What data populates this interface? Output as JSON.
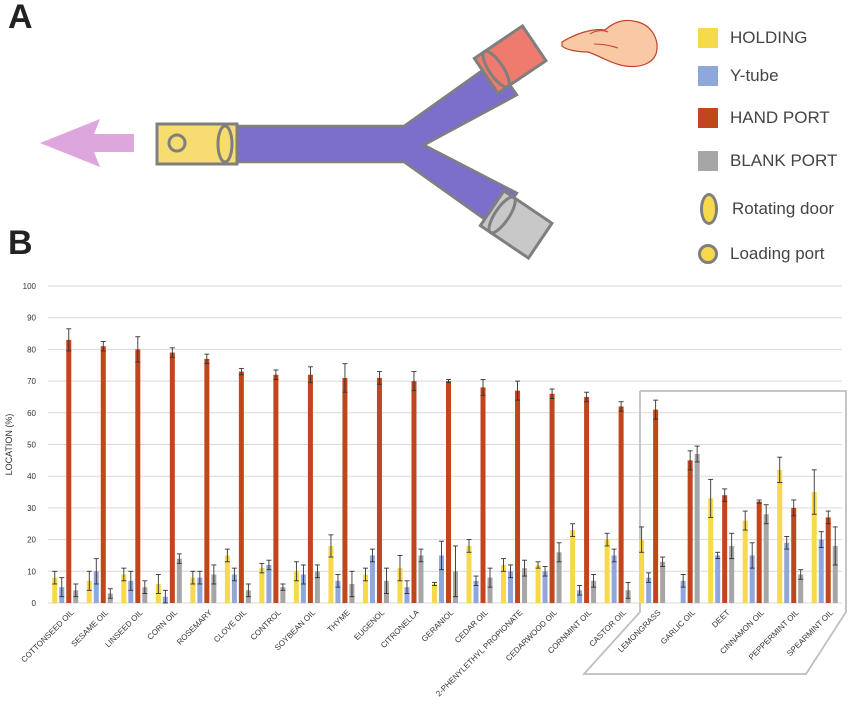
{
  "panels": {
    "a": "A",
    "b": "B"
  },
  "legend": [
    {
      "label": "HOLDING",
      "color": "#F7D94C",
      "shape": "square"
    },
    {
      "label": "Y-tube",
      "color": "#8FA8DC",
      "shape": "square"
    },
    {
      "label": "HAND PORT",
      "color": "#C0461E",
      "shape": "square"
    },
    {
      "label": "BLANK PORT",
      "color": "#A6A6A6",
      "shape": "square"
    },
    {
      "label": "Rotating door",
      "color": "#F7D94C",
      "shape": "ellipse"
    },
    {
      "label": "Loading port",
      "color": "#F7D94C",
      "shape": "circle"
    }
  ],
  "diagram": {
    "colors": {
      "holding": "#F7DC6F",
      "tube": "#7B6FCB",
      "hand_port": "#EE7B6E",
      "blank_port": "#C8C8C8",
      "arrow": "#DDA6DC",
      "outline": "#7F7F7F"
    },
    "icons": [
      "hand-icon",
      "exit-arrow-icon"
    ]
  },
  "chart_data": {
    "type": "bar",
    "ylabel": "LOCATION (%)",
    "ylim": [
      0,
      100
    ],
    "yticks": [
      0,
      10,
      20,
      30,
      40,
      50,
      60,
      70,
      80,
      90,
      100
    ],
    "grid": true,
    "categories": [
      "COTTONSEED OIL",
      "SESAME OIL",
      "LINSEED OIL",
      "CORN OIL",
      "ROSEMARY",
      "CLOVE OIL",
      "CONTROL",
      "SOYBEAN OIL",
      "THYME",
      "EUGENOL",
      "CITRONELLA",
      "GERANIOL",
      "CEDAR OIL",
      "2-PHENYLETHYL PROPIONATE",
      "CEDARWOOD OIL",
      "CORNMINT OIL",
      "CASTOR OIL",
      "LEMONGRASS",
      "GARLIC OIL",
      "DEET",
      "CINNAMON OIL",
      "PEPPERMINT OIL",
      "SPEARMINT OIL"
    ],
    "series": [
      {
        "name": "HOLDING",
        "color": "#F7D94C",
        "values": [
          8,
          7,
          9,
          6,
          8,
          15,
          11,
          10,
          18,
          9,
          11,
          6,
          18,
          12,
          12,
          23,
          20,
          20,
          0,
          33,
          26,
          42,
          35
        ],
        "errors": [
          2,
          3,
          2,
          3,
          2,
          2,
          1.5,
          3,
          3.5,
          2,
          4,
          0.5,
          2,
          2,
          1,
          2,
          2,
          4,
          0,
          6,
          3,
          4,
          7
        ]
      },
      {
        "name": "Y-tube",
        "color": "#8FA8DC",
        "values": [
          5,
          10,
          7,
          2,
          8,
          9,
          12,
          9,
          7,
          15,
          5,
          15,
          7,
          10,
          10,
          4,
          15,
          8,
          7,
          15,
          15,
          19,
          20
        ],
        "errors": [
          3,
          4,
          3,
          2,
          2,
          2,
          1.5,
          3,
          2,
          2,
          2,
          4.5,
          1.5,
          2,
          1.5,
          1.5,
          2,
          1.5,
          2,
          1,
          4,
          2,
          2.5
        ]
      },
      {
        "name": "HAND PORT",
        "color": "#C0461E",
        "values": [
          83,
          81,
          80,
          79,
          77,
          73,
          72,
          72,
          71,
          71,
          70,
          70,
          68,
          67,
          66,
          65,
          62,
          61,
          45,
          34,
          32,
          30,
          27
        ],
        "errors": [
          3.5,
          1.5,
          4,
          1.5,
          1.5,
          1,
          1.5,
          2.5,
          4.5,
          2,
          3,
          0.5,
          2.5,
          3,
          1.5,
          1.5,
          1.5,
          3,
          3,
          2,
          0.5,
          2.5,
          2
        ]
      },
      {
        "name": "BLANK PORT",
        "color": "#A6A6A6",
        "values": [
          4,
          3,
          5,
          14,
          9,
          4,
          5,
          10,
          6,
          7,
          15,
          10,
          8,
          11,
          16,
          7,
          4,
          13,
          47,
          18,
          28,
          9,
          18
        ]
      },
      {
        "name": "BLANK PORT ERR",
        "values": [
          2,
          1.5,
          2,
          1.5,
          3,
          2,
          1,
          2,
          4,
          4,
          2,
          8,
          3,
          2.5,
          3,
          2,
          2.5,
          1.5,
          2.5,
          4,
          3,
          1.5,
          6
        ]
      }
    ]
  }
}
